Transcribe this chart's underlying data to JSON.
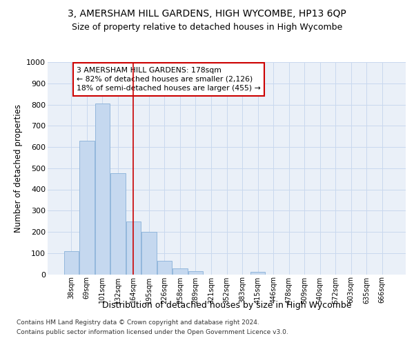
{
  "title": "3, AMERSHAM HILL GARDENS, HIGH WYCOMBE, HP13 6QP",
  "subtitle": "Size of property relative to detached houses in High Wycombe",
  "xlabel": "Distribution of detached houses by size in High Wycombe",
  "ylabel": "Number of detached properties",
  "categories": [
    "38sqm",
    "69sqm",
    "101sqm",
    "132sqm",
    "164sqm",
    "195sqm",
    "226sqm",
    "258sqm",
    "289sqm",
    "321sqm",
    "352sqm",
    "383sqm",
    "415sqm",
    "446sqm",
    "478sqm",
    "509sqm",
    "540sqm",
    "572sqm",
    "603sqm",
    "635sqm",
    "666sqm"
  ],
  "values": [
    110,
    630,
    805,
    478,
    250,
    200,
    62,
    28,
    15,
    0,
    0,
    0,
    10,
    0,
    0,
    0,
    0,
    0,
    0,
    0,
    0
  ],
  "bar_color": "#c5d8ef",
  "bar_edge_color": "#88b0d8",
  "grid_color": "#c8d8ee",
  "background_color": "#eaf0f8",
  "vline_color": "#cc0000",
  "vline_pos": 4,
  "annotation_text": "3 AMERSHAM HILL GARDENS: 178sqm\n← 82% of detached houses are smaller (2,126)\n18% of semi-detached houses are larger (455) →",
  "annotation_box_edgecolor": "#cc0000",
  "ylim": [
    0,
    1000
  ],
  "yticks": [
    0,
    100,
    200,
    300,
    400,
    500,
    600,
    700,
    800,
    900,
    1000
  ],
  "footer_line1": "Contains HM Land Registry data © Crown copyright and database right 2024.",
  "footer_line2": "Contains public sector information licensed under the Open Government Licence v3.0."
}
